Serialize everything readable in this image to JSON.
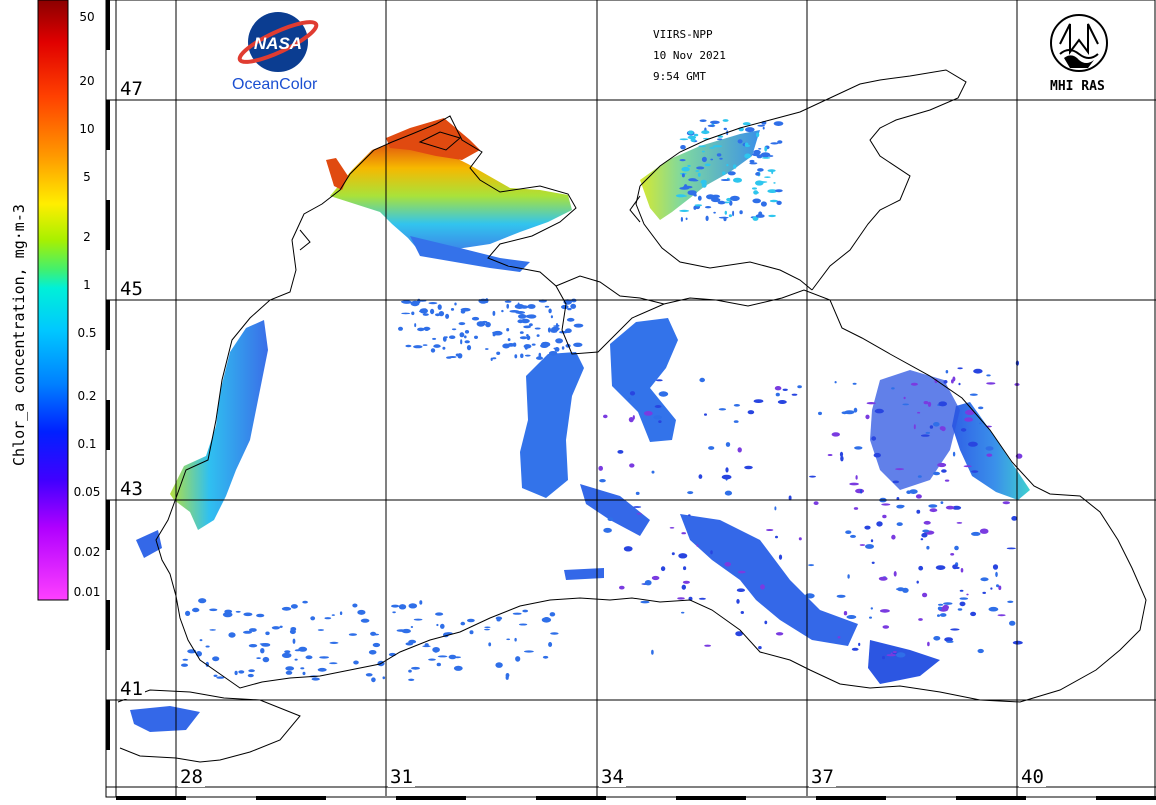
{
  "header": {
    "sensor": "VIIRS-NPP",
    "date": "10 Nov 2021",
    "time": "9:54 GMT",
    "left_logo_text": "OceanColor",
    "left_logo_badge": "NASA",
    "right_logo_text": "MHI RAS"
  },
  "colorbar": {
    "title": "Chlor_a concentration, mg·m-3",
    "ticks": [
      "50",
      "20",
      "10",
      "5",
      "2",
      "1",
      "0.5",
      "0.2",
      "0.1",
      "0.05",
      "0.02",
      "0.01"
    ],
    "colors": [
      "#8b0000",
      "#ff0000",
      "#ff8000",
      "#ffff00",
      "#80ff00",
      "#00ffcc",
      "#00d0ff",
      "#0060ff",
      "#0000ff",
      "#8000ff",
      "#ff00ff",
      "#ff40ff"
    ]
  },
  "map": {
    "latitude_labels": [
      "47",
      "45",
      "43",
      "41"
    ],
    "longitude_labels": [
      "28",
      "31",
      "34",
      "37",
      "40"
    ],
    "colors": {
      "coast": "#000000",
      "grid": "#000000",
      "high": "#e84a00",
      "mid": "#f5c400",
      "green": "#9be13a",
      "cyan": "#2ec6ee",
      "blue": "#2f6fe8",
      "deepblue": "#2845e0",
      "violet": "#7a3be0"
    }
  }
}
